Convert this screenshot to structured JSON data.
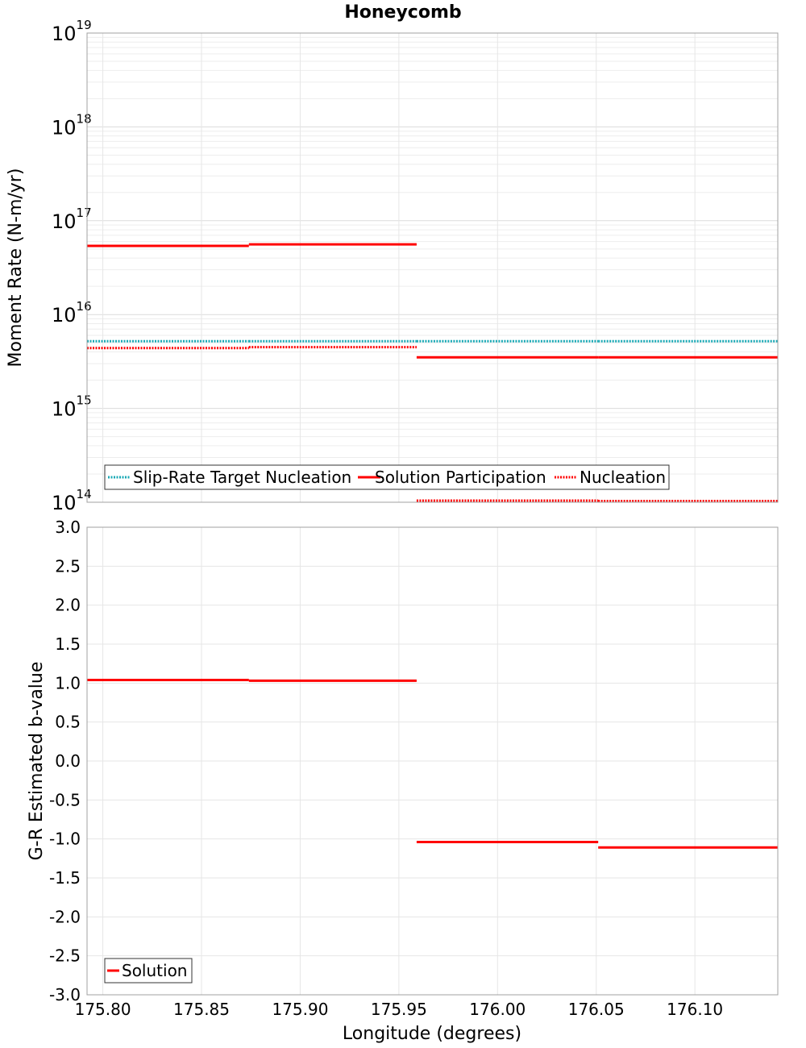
{
  "title": "Honeycomb",
  "xlabel": "Longitude (degrees)",
  "chart_data": [
    {
      "type": "line",
      "step": true,
      "ylabel": "Moment Rate (N-m/yr)",
      "yscale": "log",
      "ylim": [
        100000000000000.0,
        1e+19
      ],
      "xlim": [
        175.792,
        176.142
      ],
      "x_ticks": [
        "175.80",
        "175.85",
        "175.90",
        "175.95",
        "176.00",
        "176.05",
        "176.10"
      ],
      "y_tick_exponents": [
        "14",
        "15",
        "16",
        "17",
        "18",
        "19"
      ],
      "y_tick_base": "10",
      "legend_position": "bottom-left",
      "series": [
        {
          "name": "Slip-Rate Target Nucleation",
          "color": "#1aa9b5",
          "style": "dotted",
          "segments": [
            {
              "x0": 175.792,
              "x1": 175.874,
              "y": 5200000000000000.0
            },
            {
              "x0": 175.874,
              "x1": 175.959,
              "y": 5200000000000000.0
            },
            {
              "x0": 175.959,
              "x1": 176.051,
              "y": 5200000000000000.0
            },
            {
              "x0": 176.051,
              "x1": 176.142,
              "y": 5200000000000000.0
            }
          ]
        },
        {
          "name": "Solution Participation",
          "color": "#ff0000",
          "style": "solid",
          "segments": [
            {
              "x0": 175.792,
              "x1": 175.874,
              "y": 5.4e+16
            },
            {
              "x0": 175.874,
              "x1": 175.959,
              "y": 5.6e+16
            },
            {
              "x0": 175.959,
              "x1": 176.051,
              "y": 3500000000000000.0
            },
            {
              "x0": 176.051,
              "x1": 176.142,
              "y": 3500000000000000.0
            }
          ]
        },
        {
          "name": "Nucleation",
          "color": "#ff0000",
          "style": "dotted",
          "segments": [
            {
              "x0": 175.792,
              "x1": 175.874,
              "y": 4400000000000000.0
            },
            {
              "x0": 175.874,
              "x1": 175.959,
              "y": 4500000000000000.0
            },
            {
              "x0": 175.959,
              "x1": 176.051,
              "y": 104000000000000.0
            },
            {
              "x0": 176.051,
              "x1": 176.142,
              "y": 103000000000000.0
            }
          ]
        }
      ]
    },
    {
      "type": "line",
      "step": true,
      "ylabel": "G-R Estimated b-value",
      "ylim": [
        -3.0,
        3.0
      ],
      "xlim": [
        175.792,
        176.142
      ],
      "x_ticks": [
        "175.80",
        "175.85",
        "175.90",
        "175.95",
        "176.00",
        "176.05",
        "176.10"
      ],
      "y_ticks": [
        "3.0",
        "2.5",
        "2.0",
        "1.5",
        "1.0",
        "0.5",
        "0.0",
        "-0.5",
        "-1.0",
        "-1.5",
        "-2.0",
        "-2.5",
        "-3.0"
      ],
      "legend_position": "bottom-left",
      "series": [
        {
          "name": "Solution",
          "color": "#ff0000",
          "style": "solid",
          "segments": [
            {
              "x0": 175.792,
              "x1": 175.874,
              "y": 1.04
            },
            {
              "x0": 175.874,
              "x1": 175.959,
              "y": 1.03
            },
            {
              "x0": 175.959,
              "x1": 176.051,
              "y": -1.04
            },
            {
              "x0": 176.051,
              "x1": 176.142,
              "y": -1.11
            }
          ]
        }
      ]
    }
  ]
}
